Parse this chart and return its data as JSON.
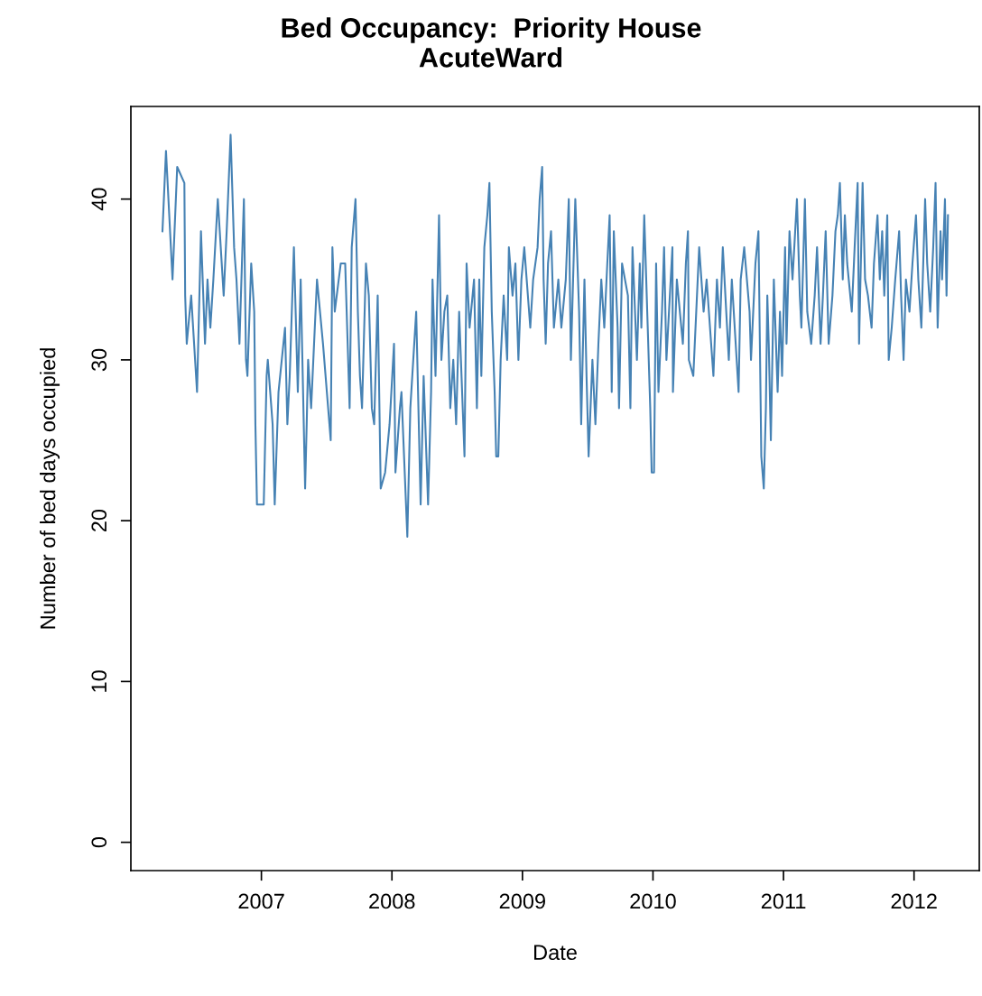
{
  "chart_data": {
    "type": "line",
    "title": "Bed Occupancy:  Priority House\nAcuteWard",
    "xlabel": "Date",
    "ylabel": "Number of bed days occupied",
    "xlim": [
      2006.0,
      2012.5
    ],
    "xticks": [
      2007,
      2008,
      2009,
      2010,
      2011,
      2012
    ],
    "ylim": [
      -1.76,
      45.76
    ],
    "yticks": [
      0,
      10,
      20,
      30,
      40
    ],
    "grid": false,
    "legend": false,
    "marker": "none",
    "line_style": "solid",
    "series": [
      {
        "color": "#4682b4",
        "x": [
          2006.242,
          2006.269,
          2006.319,
          2006.355,
          2006.41,
          2006.416,
          2006.428,
          2006.462,
          2006.507,
          2006.537,
          2006.568,
          2006.587,
          2006.609,
          2006.632,
          2006.666,
          2006.711,
          2006.734,
          2006.764,
          2006.791,
          2006.809,
          2006.832,
          2006.866,
          2006.882,
          2006.893,
          2006.922,
          2006.945,
          2006.954,
          2006.966,
          2007.018,
          2007.04,
          2007.049,
          2007.086,
          2007.102,
          2007.131,
          2007.181,
          2007.199,
          2007.217,
          2007.249,
          2007.279,
          2007.301,
          2007.335,
          2007.347,
          2007.358,
          2007.381,
          2007.426,
          2007.472,
          2007.531,
          2007.544,
          2007.562,
          2007.608,
          2007.642,
          2007.676,
          2007.692,
          2007.721,
          2007.739,
          2007.755,
          2007.771,
          2007.801,
          2007.823,
          2007.846,
          2007.864,
          2007.891,
          2007.914,
          2007.948,
          2007.982,
          2008.016,
          2008.027,
          2008.061,
          2008.073,
          2008.118,
          2008.141,
          2008.186,
          2008.22,
          2008.243,
          2008.277,
          2008.3,
          2008.311,
          2008.334,
          2008.361,
          2008.379,
          2008.402,
          2008.424,
          2008.447,
          2008.47,
          2008.492,
          2008.515,
          2008.556,
          2008.572,
          2008.595,
          2008.629,
          2008.651,
          2008.669,
          2008.685,
          2008.708,
          2008.731,
          2008.747,
          2008.765,
          2008.787,
          2008.799,
          2008.815,
          2008.833,
          2008.856,
          2008.883,
          2008.896,
          2008.924,
          2008.946,
          2008.969,
          2008.992,
          2009.014,
          2009.06,
          2009.082,
          2009.116,
          2009.132,
          2009.151,
          2009.162,
          2009.178,
          2009.196,
          2009.219,
          2009.241,
          2009.275,
          2009.298,
          2009.332,
          2009.355,
          2009.371,
          2009.405,
          2009.434,
          2009.45,
          2009.475,
          2009.491,
          2009.507,
          2009.536,
          2009.559,
          2009.582,
          2009.604,
          2009.627,
          2009.65,
          2009.668,
          2009.684,
          2009.7,
          2009.729,
          2009.74,
          2009.763,
          2009.808,
          2009.827,
          2009.843,
          2009.877,
          2009.899,
          2009.911,
          2009.933,
          2009.956,
          2009.979,
          2009.99,
          2010.008,
          2010.024,
          2010.042,
          2010.069,
          2010.085,
          2010.103,
          2010.149,
          2010.153,
          2010.183,
          2010.229,
          2010.252,
          2010.268,
          2010.275,
          2010.309,
          2010.354,
          2010.388,
          2010.411,
          2010.463,
          2010.49,
          2010.513,
          2010.535,
          2010.581,
          2010.604,
          2010.656,
          2010.672,
          2010.699,
          2010.74,
          2010.751,
          2010.785,
          2010.808,
          2010.819,
          2010.83,
          2010.849,
          2010.865,
          2010.876,
          2010.887,
          2010.903,
          2010.926,
          2010.955,
          2010.973,
          2010.989,
          2011.012,
          2011.023,
          2011.046,
          2011.069,
          2011.103,
          2011.125,
          2011.137,
          2011.164,
          2011.182,
          2011.212,
          2011.239,
          2011.257,
          2011.284,
          2011.302,
          2011.323,
          2011.346,
          2011.375,
          2011.398,
          2011.416,
          2011.432,
          2011.454,
          2011.47,
          2011.488,
          2011.523,
          2011.545,
          2011.568,
          2011.579,
          2011.606,
          2011.625,
          2011.647,
          2011.675,
          2011.693,
          2011.72,
          2011.738,
          2011.756,
          2011.772,
          2011.795,
          2011.806,
          2011.829,
          2011.856,
          2011.886,
          2011.901,
          2011.92,
          2011.938,
          2011.965,
          2011.988,
          2012.015,
          2012.033,
          2012.056,
          2012.085,
          2012.101,
          2012.124,
          2012.147,
          2012.165,
          2012.181,
          2012.203,
          2012.215,
          2012.237,
          2012.249,
          2012.26
        ],
        "values": [
          38,
          43,
          35,
          42,
          41,
          34,
          31,
          34,
          28,
          38,
          31,
          35,
          32,
          35,
          40,
          34,
          38,
          44,
          37,
          35,
          31,
          40,
          30,
          29,
          36,
          33,
          26,
          21,
          21,
          29,
          30,
          26,
          21,
          28,
          32,
          26,
          29,
          37,
          28,
          35,
          22,
          26,
          30,
          27,
          35,
          31,
          25,
          37,
          33,
          36,
          36,
          27,
          37,
          40,
          33,
          29,
          27,
          36,
          34,
          27,
          26,
          34,
          22,
          23,
          26,
          31,
          23,
          27,
          28,
          19,
          27,
          33,
          21,
          29,
          21,
          28,
          35,
          29,
          39,
          30,
          33,
          34,
          27,
          30,
          26,
          33,
          24,
          36,
          32,
          35,
          27,
          35,
          29,
          37,
          39,
          41,
          33,
          28,
          24,
          24,
          30,
          34,
          30,
          37,
          34,
          36,
          30,
          35,
          37,
          32,
          35,
          37,
          40,
          42,
          35,
          31,
          36,
          38,
          32,
          35,
          32,
          35,
          40,
          30,
          40,
          33,
          26,
          35,
          29,
          24,
          30,
          26,
          31,
          35,
          32,
          36,
          39,
          28,
          38,
          32,
          27,
          36,
          34,
          27,
          37,
          30,
          36,
          32,
          39,
          33,
          27,
          23,
          23,
          36,
          28,
          33,
          37,
          30,
          37,
          28,
          35,
          31,
          36,
          38,
          30,
          29,
          37,
          33,
          35,
          29,
          35,
          32,
          37,
          30,
          35,
          28,
          35,
          37,
          33,
          30,
          36,
          38,
          31,
          24,
          22,
          27,
          34,
          31,
          25,
          35,
          28,
          33,
          29,
          37,
          31,
          38,
          35,
          40,
          34,
          32,
          40,
          33,
          31,
          34,
          37,
          31,
          34,
          38,
          31,
          34,
          38,
          39,
          41,
          35,
          39,
          36,
          33,
          37,
          41,
          31,
          41,
          35,
          34,
          32,
          36,
          39,
          35,
          38,
          34,
          39,
          30,
          32,
          35,
          38,
          34,
          30,
          35,
          33,
          36,
          39,
          35,
          32,
          40,
          36,
          33,
          37,
          41,
          32,
          38,
          35,
          40,
          34,
          39
        ]
      }
    ]
  }
}
